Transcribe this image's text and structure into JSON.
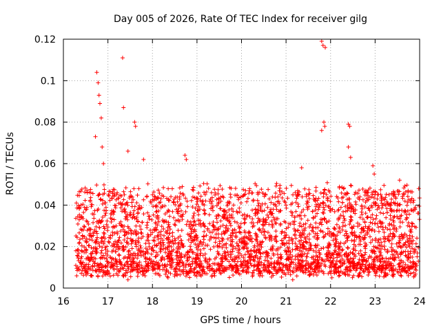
{
  "chart_data": {
    "type": "scatter",
    "title": "Day 005 of 2026, Rate Of TEC Index for receiver gilg",
    "xlabel": "GPS time / hours",
    "ylabel": "ROTI / TECUs",
    "xlim": [
      16,
      24
    ],
    "ylim": [
      0,
      0.12
    ],
    "x_ticks": [
      16,
      17,
      18,
      19,
      20,
      21,
      22,
      23,
      24
    ],
    "y_ticks": [
      0,
      0.02,
      0.04,
      0.06,
      0.08,
      0.1,
      0.12
    ],
    "x_tick_labels": [
      "16",
      "17",
      "18",
      "19",
      "20",
      "21",
      "22",
      "23",
      "24"
    ],
    "y_tick_labels": [
      "0",
      "0.02",
      "0.04",
      "0.06",
      "0.08",
      "0.1",
      "0.12"
    ],
    "grid": true,
    "marker": "+",
    "marker_color": "#ff0000",
    "series": [
      {
        "name": "ROTI",
        "x_start": 16.27,
        "x_end": 24.0,
        "typical_range": [
          0.005,
          0.045
        ],
        "highlight_points": [
          [
            16.75,
            0.104
          ],
          [
            16.78,
            0.099
          ],
          [
            16.8,
            0.093
          ],
          [
            16.82,
            0.089
          ],
          [
            16.85,
            0.082
          ],
          [
            16.72,
            0.073
          ],
          [
            16.87,
            0.068
          ],
          [
            16.9,
            0.06
          ],
          [
            17.33,
            0.111
          ],
          [
            17.35,
            0.087
          ],
          [
            17.6,
            0.08
          ],
          [
            17.62,
            0.078
          ],
          [
            17.45,
            0.066
          ],
          [
            17.8,
            0.062
          ],
          [
            18.73,
            0.064
          ],
          [
            18.76,
            0.062
          ],
          [
            21.35,
            0.058
          ],
          [
            21.8,
            0.119
          ],
          [
            21.83,
            0.117
          ],
          [
            21.88,
            0.116
          ],
          [
            21.85,
            0.08
          ],
          [
            21.8,
            0.076
          ],
          [
            21.87,
            0.078
          ],
          [
            22.4,
            0.079
          ],
          [
            22.43,
            0.078
          ],
          [
            22.4,
            0.068
          ],
          [
            22.45,
            0.063
          ],
          [
            22.95,
            0.059
          ],
          [
            22.98,
            0.055
          ],
          [
            23.55,
            0.052
          ],
          [
            23.98,
            0.048
          ],
          [
            17.45,
            0.004
          ],
          [
            18.35,
            0.005
          ],
          [
            21.15,
            0.004
          ],
          [
            22.03,
            0.005
          ]
        ]
      }
    ]
  }
}
